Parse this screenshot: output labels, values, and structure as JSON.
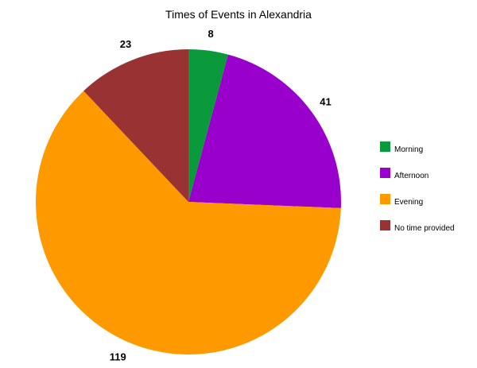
{
  "chart_data": {
    "type": "pie",
    "title": "Times of Events in Alexandria",
    "categories": [
      "Morning",
      "Afternoon",
      "Evening",
      "No time provided"
    ],
    "values": [
      8,
      41,
      119,
      23
    ],
    "colors": [
      "#0b9a3b",
      "#9900cc",
      "#ff9900",
      "#993333"
    ],
    "legend": {
      "position": "right",
      "entries": [
        "Morning",
        "Afternoon",
        "Evening",
        "No time provided"
      ]
    },
    "start_angle": "12 o'clock",
    "direction": "clockwise"
  }
}
